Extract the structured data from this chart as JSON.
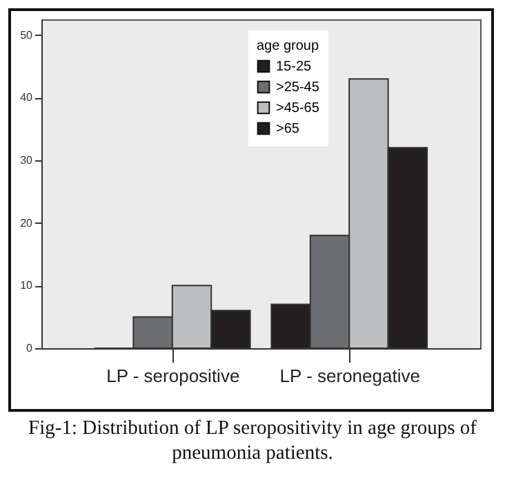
{
  "chart_data": {
    "type": "bar",
    "categories": [
      "LP - seropositive",
      "LP - seronegative"
    ],
    "series": [
      {
        "name": "15-25",
        "color": "#231f20",
        "values": [
          0,
          7
        ]
      },
      {
        "name": ">25-45",
        "color": "#6d6e71",
        "values": [
          5,
          18
        ]
      },
      {
        "name": ">45-65",
        "color": "#bcbec0",
        "values": [
          10,
          43
        ]
      },
      {
        "name": ">65",
        "color": "#231f20",
        "values": [
          6,
          32
        ]
      }
    ],
    "legend_title": "age group",
    "legend": "top",
    "ylim": [
      0,
      52.5
    ],
    "yticks": [
      0,
      10,
      20,
      30,
      40,
      50
    ],
    "grid": false,
    "annotations": [
      "Fig-1: Distribution of LP seropositivity in age groups of pneumonia patients."
    ]
  }
}
